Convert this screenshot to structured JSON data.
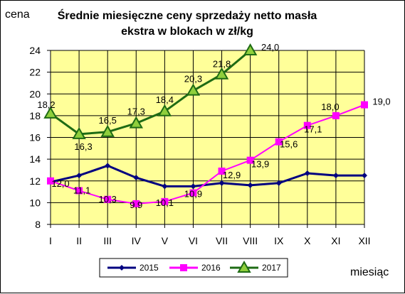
{
  "chart_data": {
    "type": "line",
    "title_lines": [
      "Średnie miesięczne ceny sprzedaży netto masła",
      "ekstra w blokach w zł/kg"
    ],
    "ylabel": "cena",
    "xlabel": "miesiąc",
    "categories": [
      "I",
      "II",
      "III",
      "IV",
      "V",
      "VI",
      "VII",
      "VIII",
      "IX",
      "X",
      "XI",
      "XII"
    ],
    "ylim": [
      8,
      24
    ],
    "yticks": [
      8,
      10,
      12,
      14,
      16,
      18,
      20,
      22,
      24
    ],
    "grid": true,
    "legend_position": "bottom",
    "plot_background": "#FFFF99",
    "series": [
      {
        "name": "2015",
        "color": "#000080",
        "marker": "diamond",
        "values": [
          11.9,
          12.5,
          13.4,
          12.3,
          11.5,
          11.5,
          11.8,
          11.6,
          11.8,
          12.7,
          12.5,
          12.5
        ],
        "labels": null
      },
      {
        "name": "2016",
        "color": "#FF00FF",
        "marker": "square",
        "values": [
          12.0,
          11.1,
          10.3,
          9.9,
          10.1,
          10.9,
          12.9,
          13.9,
          15.6,
          17.1,
          18.0,
          19.0
        ],
        "labels": [
          "12,0",
          "11,1",
          "10,3",
          "9,9",
          "10,1",
          "10,9",
          "12,9",
          "13,9",
          "15,6",
          "17,1",
          "18,0",
          "19,0"
        ]
      },
      {
        "name": "2017",
        "color": "#1E6B14",
        "marker": "triangle",
        "values": [
          18.2,
          16.3,
          16.5,
          17.3,
          18.4,
          20.3,
          21.8,
          24.0,
          null,
          null,
          null,
          null
        ],
        "labels": [
          "18,2",
          "16,3",
          "16,5",
          "17,3",
          "18,4",
          "20,3",
          "21,8",
          "24,0",
          null,
          null,
          null,
          null
        ]
      }
    ]
  }
}
